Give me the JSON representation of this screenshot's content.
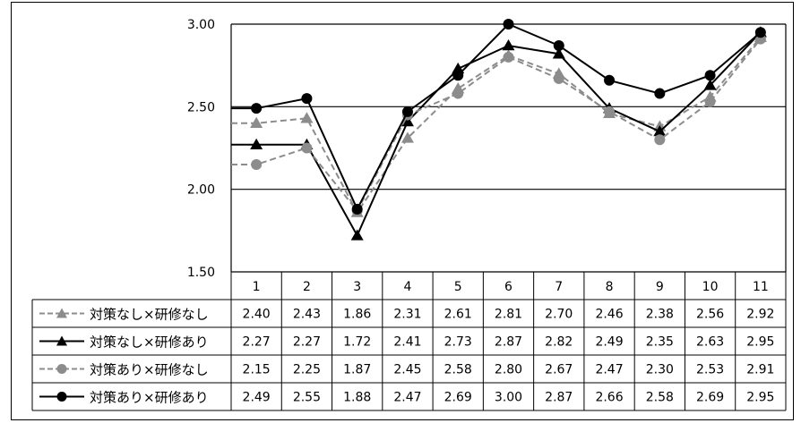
{
  "chart_data": {
    "type": "line",
    "title": "",
    "xlabel": "",
    "ylabel": "",
    "ylim": [
      1.5,
      3.0
    ],
    "yticks": [
      "3.00",
      "2.50",
      "2.00",
      "1.50"
    ],
    "yticks_values": [
      3.0,
      2.5,
      2.0,
      1.5
    ],
    "categories": [
      "1",
      "2",
      "3",
      "4",
      "5",
      "6",
      "7",
      "8",
      "9",
      "10",
      "11"
    ],
    "grid": "horizontal",
    "legend_placement": "data-table-left",
    "series": [
      {
        "name": "対策なし×研修なし",
        "color": "#8c8c8c",
        "dash": "dashed",
        "marker": "triangle",
        "values": [
          2.4,
          2.43,
          1.86,
          2.31,
          2.61,
          2.81,
          2.7,
          2.46,
          2.38,
          2.56,
          2.92
        ],
        "labels": [
          "2.40",
          "2.43",
          "1.86",
          "2.31",
          "2.61",
          "2.81",
          "2.70",
          "2.46",
          "2.38",
          "2.56",
          "2.92"
        ]
      },
      {
        "name": "対策なし×研修あり",
        "color": "#000000",
        "dash": "solid",
        "marker": "triangle",
        "values": [
          2.27,
          2.27,
          1.72,
          2.41,
          2.73,
          2.87,
          2.82,
          2.49,
          2.35,
          2.63,
          2.95
        ],
        "labels": [
          "2.27",
          "2.27",
          "1.72",
          "2.41",
          "2.73",
          "2.87",
          "2.82",
          "2.49",
          "2.35",
          "2.63",
          "2.95"
        ]
      },
      {
        "name": "対策あり×研修なし",
        "color": "#8c8c8c",
        "dash": "dashed",
        "marker": "circle",
        "values": [
          2.15,
          2.25,
          1.87,
          2.45,
          2.58,
          2.8,
          2.67,
          2.47,
          2.3,
          2.53,
          2.91
        ],
        "labels": [
          "2.15",
          "2.25",
          "1.87",
          "2.45",
          "2.58",
          "2.80",
          "2.67",
          "2.47",
          "2.30",
          "2.53",
          "2.91"
        ]
      },
      {
        "name": "対策あり×研修あり",
        "color": "#000000",
        "dash": "solid",
        "marker": "circle",
        "values": [
          2.49,
          2.55,
          1.88,
          2.47,
          2.69,
          3.0,
          2.87,
          2.66,
          2.58,
          2.69,
          2.95
        ],
        "labels": [
          "2.49",
          "2.55",
          "1.88",
          "2.47",
          "2.69",
          "3.00",
          "2.87",
          "2.66",
          "2.58",
          "2.69",
          "2.95"
        ]
      }
    ]
  }
}
